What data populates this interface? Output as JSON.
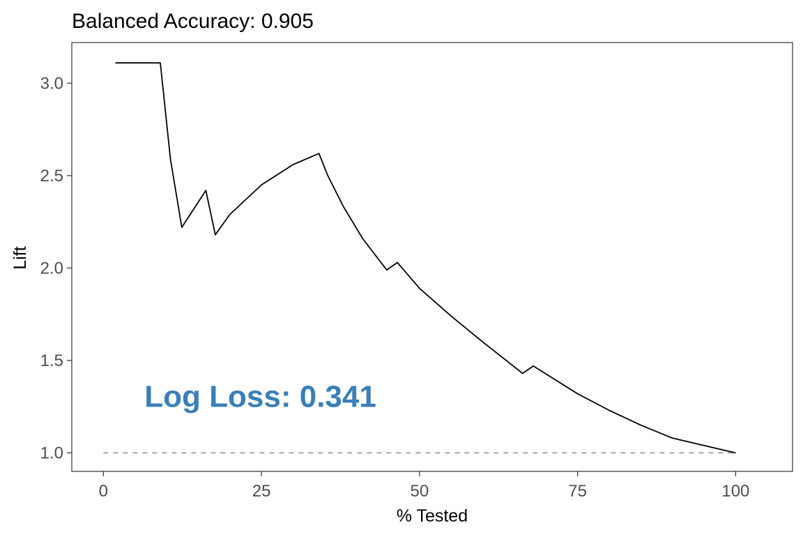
{
  "chart_data": {
    "type": "line",
    "title": "Balanced Accuracy: 0.905",
    "xlabel": "% Tested",
    "ylabel": "Lift",
    "xlim": [
      -5,
      109
    ],
    "ylim": [
      0.9,
      3.22
    ],
    "x_ticks": [
      0,
      25,
      50,
      75,
      100
    ],
    "y_ticks": [
      1.0,
      1.5,
      2.0,
      2.5,
      3.0
    ],
    "x_tick_labels": [
      "0",
      "25",
      "50",
      "75",
      "100"
    ],
    "y_tick_labels": [
      "1.0",
      "1.5",
      "2.0",
      "2.5",
      "3.0"
    ],
    "grid": false,
    "annotation": {
      "text": "Log Loss: 0.341",
      "x": 6.5,
      "y": 1.31,
      "color": "#3a7fb8"
    },
    "baseline": {
      "y": 1.0,
      "x": [
        0,
        100
      ],
      "style": "dashed",
      "color": "#8c8c8c"
    },
    "series": [
      {
        "color": "#000000",
        "x": [
          1.9,
          9.0,
          10.6,
          12.4,
          16.2,
          17.7,
          20,
          25,
          30,
          34.1,
          35.5,
          38,
          41,
          44.8,
          46.5,
          50,
          55,
          60,
          66.3,
          68,
          75,
          80,
          85,
          90,
          95,
          100
        ],
        "y": [
          3.11,
          3.11,
          2.59,
          2.22,
          2.42,
          2.18,
          2.29,
          2.45,
          2.56,
          2.62,
          2.5,
          2.33,
          2.16,
          1.99,
          2.03,
          1.89,
          1.74,
          1.6,
          1.43,
          1.47,
          1.32,
          1.23,
          1.15,
          1.08,
          1.04,
          1.0
        ]
      }
    ]
  }
}
